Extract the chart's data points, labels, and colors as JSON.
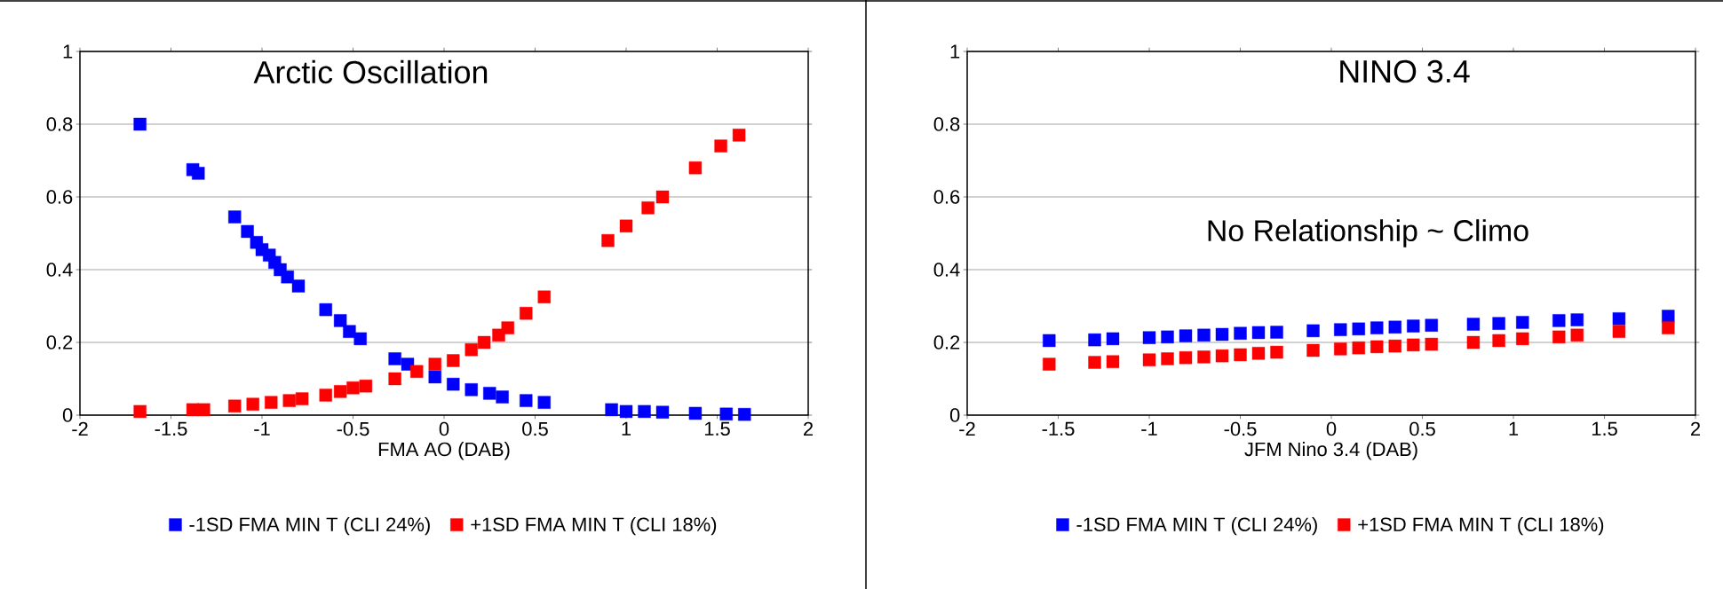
{
  "chart_data": [
    {
      "type": "scatter",
      "title": "Arctic Oscillation",
      "xlabel": "FMA  AO  (DAB)",
      "xlim": [
        -2,
        2
      ],
      "ylim": [
        0,
        1
      ],
      "xticks": [
        -2,
        -1.5,
        -1,
        -0.5,
        0,
        0.5,
        1,
        1.5,
        2
      ],
      "yticks": [
        0,
        0.2,
        0.4,
        0.6,
        0.8,
        1
      ],
      "grid": "y",
      "legend": "bottom",
      "marker": "square",
      "series": [
        {
          "name": "-1SD FMA MIN T (CLI 24%)",
          "color": "#0000ff",
          "x": [
            -1.67,
            -1.4,
            -1.38,
            -1.35,
            -1.15,
            -1.08,
            -1.03,
            -1.0,
            -0.96,
            -0.93,
            -0.9,
            -0.86,
            -0.8,
            -0.65,
            -0.57,
            -0.52,
            -0.46,
            -0.27,
            -0.2,
            -0.12,
            -0.05,
            0.05,
            0.15,
            0.25,
            0.32,
            0.45,
            0.55,
            0.92,
            1.0,
            1.1,
            1.2,
            1.38,
            1.55,
            1.65
          ],
          "values": [
            0.8,
            null,
            0.675,
            0.665,
            0.545,
            0.505,
            0.475,
            0.455,
            0.44,
            0.42,
            0.4,
            0.38,
            0.355,
            0.29,
            0.26,
            0.23,
            0.21,
            0.155,
            0.14,
            null,
            0.105,
            0.085,
            0.07,
            0.06,
            0.05,
            0.04,
            0.035,
            0.015,
            0.01,
            0.01,
            0.008,
            0.005,
            0.003,
            0.002
          ]
        },
        {
          "name": "+1SD FMA MIN T (CLI 18%)",
          "color": "#ff0000",
          "x": [
            -1.67,
            -1.38,
            -1.32,
            -1.15,
            -1.05,
            -0.95,
            -0.85,
            -0.78,
            -0.65,
            -0.57,
            -0.5,
            -0.43,
            -0.27,
            -0.15,
            -0.05,
            0.05,
            0.15,
            0.22,
            0.3,
            0.35,
            0.45,
            0.55,
            0.9,
            1.0,
            1.12,
            1.2,
            1.38,
            1.52,
            1.62
          ],
          "values": [
            0.01,
            0.015,
            0.015,
            0.025,
            0.03,
            0.035,
            0.04,
            0.045,
            0.055,
            0.065,
            0.075,
            0.08,
            0.1,
            0.12,
            0.14,
            0.15,
            0.18,
            0.2,
            0.22,
            0.24,
            0.28,
            0.325,
            0.48,
            0.52,
            0.57,
            0.6,
            0.68,
            0.74,
            0.77
          ]
        }
      ]
    },
    {
      "type": "scatter",
      "title": "NINO 3.4",
      "xlabel": "JFM  Nino 3.4  (DAB)",
      "annotations": [
        "No Relationship ~ Climo"
      ],
      "xlim": [
        -2,
        2
      ],
      "ylim": [
        0,
        1
      ],
      "xticks": [
        -2,
        -1.5,
        -1,
        -0.5,
        0,
        0.5,
        1,
        1.5,
        2
      ],
      "yticks": [
        0,
        0.2,
        0.4,
        0.6,
        0.8,
        1
      ],
      "grid": "y",
      "legend": "bottom",
      "marker": "square",
      "series": [
        {
          "name": "-1SD FMA MIN T (CLI 24%)",
          "color": "#0000ff",
          "x": [
            -1.55,
            -1.3,
            -1.2,
            -1.0,
            -0.9,
            -0.8,
            -0.7,
            -0.6,
            -0.5,
            -0.4,
            -0.3,
            -0.1,
            0.05,
            0.15,
            0.25,
            0.35,
            0.45,
            0.55,
            0.78,
            0.92,
            1.05,
            1.25,
            1.35,
            1.58,
            1.85
          ],
          "values": [
            0.205,
            0.207,
            0.21,
            0.213,
            0.215,
            0.218,
            0.22,
            0.222,
            0.225,
            0.227,
            0.228,
            0.232,
            0.235,
            0.237,
            0.24,
            0.242,
            0.245,
            0.247,
            0.25,
            0.252,
            0.255,
            0.26,
            0.262,
            0.265,
            0.272
          ]
        },
        {
          "name": "+1SD FMA MIN T (CLI 18%)",
          "color": "#ff0000",
          "x": [
            -1.55,
            -1.3,
            -1.2,
            -1.0,
            -0.9,
            -0.8,
            -0.7,
            -0.6,
            -0.5,
            -0.4,
            -0.3,
            -0.1,
            0.05,
            0.15,
            0.25,
            0.35,
            0.45,
            0.55,
            0.78,
            0.92,
            1.05,
            1.25,
            1.35,
            1.58,
            1.85
          ],
          "values": [
            0.14,
            0.145,
            0.147,
            0.152,
            0.155,
            0.158,
            0.16,
            0.163,
            0.166,
            0.17,
            0.173,
            0.178,
            0.182,
            0.185,
            0.188,
            0.19,
            0.193,
            0.195,
            0.2,
            0.205,
            0.21,
            0.215,
            0.22,
            0.23,
            0.24
          ]
        }
      ]
    }
  ]
}
